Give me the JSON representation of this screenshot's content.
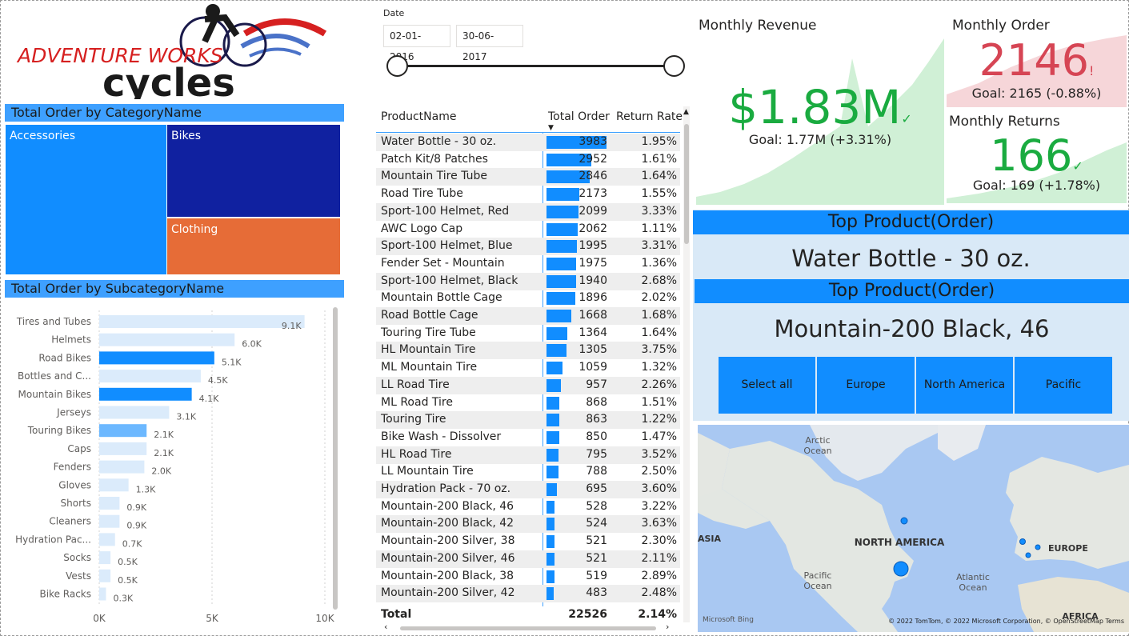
{
  "logo": {
    "line1": "ADVENTURE WORKS",
    "line2": "cycles"
  },
  "colors": {
    "accent_light": "#3ea0ff",
    "accent": "#118dff",
    "navy": "#1021a0",
    "orange": "#e66c37",
    "good": "#1aab40",
    "bad": "#d64554"
  },
  "category_title": "Total Order by CategoryName",
  "categories": [
    {
      "name": "Accessories"
    },
    {
      "name": "Bikes"
    },
    {
      "name": "Clothing"
    }
  ],
  "subcategory_title": "Total Order by SubcategoryName",
  "chart_data": {
    "type": "bar",
    "orientation": "horizontal",
    "categories": [
      "Tires and Tubes",
      "Helmets",
      "Road Bikes",
      "Bottles and C...",
      "Mountain Bikes",
      "Jerseys",
      "Touring Bikes",
      "Caps",
      "Fenders",
      "Gloves",
      "Shorts",
      "Cleaners",
      "Hydration Pac...",
      "Socks",
      "Vests",
      "Bike Racks"
    ],
    "values": [
      9100,
      6000,
      5100,
      4500,
      4100,
      3100,
      2100,
      2100,
      2000,
      1300,
      900,
      900,
      700,
      500,
      500,
      300
    ],
    "value_labels": [
      "9.1K",
      "6.0K",
      "5.1K",
      "4.5K",
      "4.1K",
      "3.1K",
      "2.1K",
      "2.1K",
      "2.0K",
      "1.3K",
      "0.9K",
      "0.9K",
      "0.7K",
      "0.5K",
      "0.5K",
      "0.3K"
    ],
    "highlighted": [
      false,
      false,
      true,
      false,
      true,
      false,
      true,
      false,
      false,
      false,
      false,
      false,
      false,
      false,
      false,
      false
    ],
    "xlim": [
      0,
      10000
    ],
    "x_ticks": [
      "0K",
      "5K",
      "10K"
    ],
    "grid": true
  },
  "date_slicer": {
    "label": "Date",
    "start": "02-01-2016",
    "end": "30-06-2017"
  },
  "table": {
    "columns": [
      "ProductName",
      "Total Order",
      "Return Rate"
    ],
    "max_order": 3983,
    "rows": [
      {
        "name": "Water Bottle - 30 oz.",
        "order": 3983,
        "order_label": "3983",
        "rate": "1.95%"
      },
      {
        "name": "Patch Kit/8 Patches",
        "order": 2952,
        "order_label": "2952",
        "rate": "1.61%"
      },
      {
        "name": "Mountain Tire Tube",
        "order": 2846,
        "order_label": "2846",
        "rate": "1.64%"
      },
      {
        "name": "Road Tire Tube",
        "order": 2173,
        "order_label": "2173",
        "rate": "1.55%"
      },
      {
        "name": "Sport-100 Helmet, Red",
        "order": 2099,
        "order_label": "2099",
        "rate": "3.33%"
      },
      {
        "name": "AWC Logo Cap",
        "order": 2062,
        "order_label": "2062",
        "rate": "1.11%"
      },
      {
        "name": "Sport-100 Helmet, Blue",
        "order": 1995,
        "order_label": "1995",
        "rate": "3.31%"
      },
      {
        "name": "Fender Set - Mountain",
        "order": 1975,
        "order_label": "1975",
        "rate": "1.36%"
      },
      {
        "name": "Sport-100 Helmet, Black",
        "order": 1940,
        "order_label": "1940",
        "rate": "2.68%"
      },
      {
        "name": "Mountain Bottle Cage",
        "order": 1896,
        "order_label": "1896",
        "rate": "2.02%"
      },
      {
        "name": "Road Bottle Cage",
        "order": 1668,
        "order_label": "1668",
        "rate": "1.68%"
      },
      {
        "name": "Touring Tire Tube",
        "order": 1364,
        "order_label": "1364",
        "rate": "1.64%"
      },
      {
        "name": "HL Mountain Tire",
        "order": 1305,
        "order_label": "1305",
        "rate": "3.75%"
      },
      {
        "name": "ML Mountain Tire",
        "order": 1059,
        "order_label": "1059",
        "rate": "1.32%"
      },
      {
        "name": "LL Road Tire",
        "order": 957,
        "order_label": "957",
        "rate": "2.26%"
      },
      {
        "name": "ML Road Tire",
        "order": 868,
        "order_label": "868",
        "rate": "1.51%"
      },
      {
        "name": "Touring Tire",
        "order": 863,
        "order_label": "863",
        "rate": "1.22%"
      },
      {
        "name": "Bike Wash - Dissolver",
        "order": 850,
        "order_label": "850",
        "rate": "1.47%"
      },
      {
        "name": "HL Road Tire",
        "order": 795,
        "order_label": "795",
        "rate": "3.52%"
      },
      {
        "name": "LL Mountain Tire",
        "order": 788,
        "order_label": "788",
        "rate": "2.50%"
      },
      {
        "name": "Hydration Pack - 70 oz.",
        "order": 695,
        "order_label": "695",
        "rate": "3.60%"
      },
      {
        "name": "Mountain-200 Black, 46",
        "order": 528,
        "order_label": "528",
        "rate": "3.22%"
      },
      {
        "name": "Mountain-200 Black, 42",
        "order": 524,
        "order_label": "524",
        "rate": "3.63%"
      },
      {
        "name": "Mountain-200 Silver, 38",
        "order": 521,
        "order_label": "521",
        "rate": "2.30%"
      },
      {
        "name": "Mountain-200 Silver, 46",
        "order": 521,
        "order_label": "521",
        "rate": "2.11%"
      },
      {
        "name": "Mountain-200 Black, 38",
        "order": 519,
        "order_label": "519",
        "rate": "2.89%"
      },
      {
        "name": "Mountain-200 Silver, 42",
        "order": 483,
        "order_label": "483",
        "rate": "2.48%"
      }
    ],
    "total": {
      "label": "Total",
      "order": "22526",
      "rate": "2.14%"
    }
  },
  "kpi": {
    "revenue": {
      "title": "Monthly Revenue",
      "value": "$1.83M",
      "mark": "✓",
      "goal": "Goal: 1.77M (+3.31%)"
    },
    "orders": {
      "title": "Monthly Order",
      "value": "2146",
      "mark": "!",
      "goal": "Goal: 2165 (-0.88%)"
    },
    "returns": {
      "title": "Monthly Returns",
      "value": "166",
      "mark": "✓",
      "goal": "Goal: 169 (+1.78%)"
    }
  },
  "top_product_1": {
    "title": "Top Product(Order)",
    "value": "Water Bottle - 30 oz."
  },
  "top_product_2": {
    "title": "Top Product(Order)",
    "value": "Mountain-200 Black, 46"
  },
  "regions": [
    "Select all",
    "Europe",
    "North America",
    "Pacific"
  ],
  "map": {
    "labels": {
      "arctic": "Arctic\nOcean",
      "asia": "ASIA",
      "north_america": "NORTH AMERICA",
      "europe": "EUROPE",
      "pacific": "Pacific\nOcean",
      "atlantic": "Atlantic\nOcean",
      "africa": "AFRICA"
    },
    "attribution": "© 2022 TomTom, © 2022 Microsoft Corporation, © OpenStreetMap  Terms",
    "bing": "Microsoft Bing"
  }
}
